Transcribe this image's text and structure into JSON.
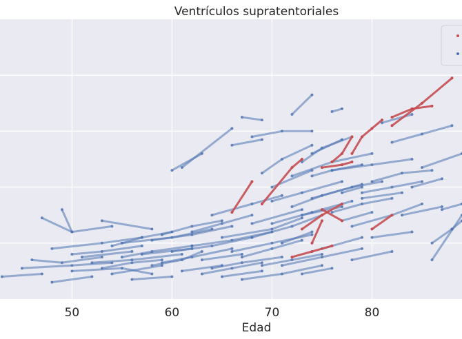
{
  "chart_data": {
    "type": "line",
    "title": "Ventrículos supratentoriales",
    "xlabel": "Edad",
    "ylabel": "",
    "xlim": [
      42.8,
      89
    ],
    "ylim": [
      0,
      100
    ],
    "xticks": [
      50,
      60,
      70,
      80
    ],
    "grid": true,
    "legend": "top-right",
    "colors": {
      "background": "#eaeaf2",
      "grid": "#ffffff",
      "blue": "#4c72b0",
      "red": "#c44e52"
    },
    "series": [
      {
        "group": "red",
        "subjects": [
          {
            "x": [
              75,
              77,
              78
            ],
            "y": [
              47,
              48,
              49
            ]
          },
          {
            "x": [
              74,
              75
            ],
            "y": [
              20,
              28
            ]
          },
          {
            "x": [
              66,
              68
            ],
            "y": [
              31,
              42
            ]
          },
          {
            "x": [
              69,
              72,
              73
            ],
            "y": [
              34,
              47,
              50
            ]
          },
          {
            "x": [
              76,
              77,
              78
            ],
            "y": [
              49,
              52,
              58
            ]
          },
          {
            "x": [
              78,
              79,
              80,
              81
            ],
            "y": [
              52,
              58,
              61,
              64
            ]
          },
          {
            "x": [
              82,
              84,
              86
            ],
            "y": [
              65,
              68,
              69
            ]
          },
          {
            "x": [
              82,
              85,
              88
            ],
            "y": [
              62,
              70,
              79
            ]
          },
          {
            "x": [
              73,
              75,
              77
            ],
            "y": [
              25,
              30,
              34
            ]
          },
          {
            "x": [
              72,
              74,
              76
            ],
            "y": [
              15,
              17,
              19
            ]
          },
          {
            "x": [
              80,
              82
            ],
            "y": [
              25,
              30
            ]
          },
          {
            "x": [
              75,
              77
            ],
            "y": [
              32,
              28
            ]
          }
        ]
      },
      {
        "group": "blue",
        "subjects": [
          {
            "x": [
              43,
              47
            ],
            "y": [
              8,
              9
            ]
          },
          {
            "x": [
              45,
              50,
              54
            ],
            "y": [
              11,
              12,
              13
            ]
          },
          {
            "x": [
              46,
              49,
              53
            ],
            "y": [
              14,
              13,
              15
            ]
          },
          {
            "x": [
              47,
              50
            ],
            "y": [
              29,
              24
            ]
          },
          {
            "x": [
              48,
              53,
              57
            ],
            "y": [
              18,
              20,
              22
            ]
          },
          {
            "x": [
              48,
              52
            ],
            "y": [
              6,
              8
            ]
          },
          {
            "x": [
              49,
              50,
              54
            ],
            "y": [
              32,
              24,
              26
            ]
          },
          {
            "x": [
              50,
              55,
              58
            ],
            "y": [
              10,
              11,
              9
            ]
          },
          {
            "x": [
              51,
              56
            ],
            "y": [
              15,
              17
            ]
          },
          {
            "x": [
              52,
              56,
              61
            ],
            "y": [
              13,
              14,
              16
            ]
          },
          {
            "x": [
              53,
              58
            ],
            "y": [
              28,
              25
            ]
          },
          {
            "x": [
              54,
              59
            ],
            "y": [
              9,
              12
            ]
          },
          {
            "x": [
              55,
              60,
              64
            ],
            "y": [
              20,
              22,
              25
            ]
          },
          {
            "x": [
              56,
              60
            ],
            "y": [
              7,
              8
            ]
          },
          {
            "x": [
              57,
              62
            ],
            "y": [
              16,
              18
            ]
          },
          {
            "x": [
              58,
              61,
              63
            ],
            "y": [
              12,
              14,
              17
            ]
          },
          {
            "x": [
              59,
              62,
              65
            ],
            "y": [
              23,
              26,
              28
            ]
          },
          {
            "x": [
              60,
              63
            ],
            "y": [
              46,
              52
            ]
          },
          {
            "x": [
              61,
              66
            ],
            "y": [
              47,
              61
            ]
          },
          {
            "x": [
              61,
              65
            ],
            "y": [
              10,
              12
            ]
          },
          {
            "x": [
              62,
              66,
              70
            ],
            "y": [
              19,
              21,
              24
            ]
          },
          {
            "x": [
              63,
              67
            ],
            "y": [
              14,
              16
            ]
          },
          {
            "x": [
              64,
              68,
              71
            ],
            "y": [
              30,
              34,
              37
            ]
          },
          {
            "x": [
              65,
              69
            ],
            "y": [
              8,
              10
            ]
          },
          {
            "x": [
              65,
              70,
              73
            ],
            "y": [
              22,
              25,
              29
            ]
          },
          {
            "x": [
              66,
              69
            ],
            "y": [
              55,
              57
            ]
          },
          {
            "x": [
              67,
              70,
              73
            ],
            "y": [
              15,
              18,
              21
            ]
          },
          {
            "x": [
              67,
              69
            ],
            "y": [
              65,
              64
            ]
          },
          {
            "x": [
              68,
              71,
              74
            ],
            "y": [
              58,
              60,
              60
            ]
          },
          {
            "x": [
              68,
              73
            ],
            "y": [
              27,
              32
            ]
          },
          {
            "x": [
              69,
              72,
              75
            ],
            "y": [
              12,
              14,
              16
            ]
          },
          {
            "x": [
              70,
              74
            ],
            "y": [
              40,
              46
            ]
          },
          {
            "x": [
              70,
              73,
              77
            ],
            "y": [
              35,
              38,
              42
            ]
          },
          {
            "x": [
              71,
              74
            ],
            "y": [
              20,
              24
            ]
          },
          {
            "x": [
              72,
              74
            ],
            "y": [
              66,
              73
            ]
          },
          {
            "x": [
              72,
              76,
              80
            ],
            "y": [
              44,
              49,
              52
            ]
          },
          {
            "x": [
              73,
              77
            ],
            "y": [
              30,
              33
            ]
          },
          {
            "x": [
              73,
              76
            ],
            "y": [
              9,
              11
            ]
          },
          {
            "x": [
              74,
              78,
              81
            ],
            "y": [
              36,
              40,
              42
            ]
          },
          {
            "x": [
              74,
              77
            ],
            "y": [
              52,
              57
            ]
          },
          {
            "x": [
              75,
              79
            ],
            "y": [
              18,
              22
            ]
          },
          {
            "x": [
              76,
              77
            ],
            "y": [
              67,
              68
            ]
          },
          {
            "x": [
              76,
              80,
              84
            ],
            "y": [
              46,
              48,
              50
            ]
          },
          {
            "x": [
              77,
              80
            ],
            "y": [
              28,
              31
            ]
          },
          {
            "x": [
              77,
              79
            ],
            "y": [
              38,
              40
            ]
          },
          {
            "x": [
              78,
              82
            ],
            "y": [
              14,
              17
            ]
          },
          {
            "x": [
              78,
              82,
              85
            ],
            "y": [
              26,
              30,
              34
            ]
          },
          {
            "x": [
              79,
              83
            ],
            "y": [
              36,
              38
            ]
          },
          {
            "x": [
              80,
              83,
              86
            ],
            "y": [
              42,
              45,
              46
            ]
          },
          {
            "x": [
              80,
              84
            ],
            "y": [
              22,
              24
            ]
          },
          {
            "x": [
              81,
              84
            ],
            "y": [
              63,
              66
            ]
          },
          {
            "x": [
              82,
              85,
              88
            ],
            "y": [
              56,
              59,
              62
            ]
          },
          {
            "x": [
              83,
              87
            ],
            "y": [
              30,
              33
            ]
          },
          {
            "x": [
              84,
              87
            ],
            "y": [
              40,
              43
            ]
          },
          {
            "x": [
              85,
              89
            ],
            "y": [
              47,
              52
            ]
          },
          {
            "x": [
              86,
              88
            ],
            "y": [
              20,
              25
            ]
          },
          {
            "x": [
              86,
              89
            ],
            "y": [
              14,
              30
            ]
          },
          {
            "x": [
              87,
              89
            ],
            "y": [
              32,
              34
            ]
          },
          {
            "x": [
              88,
              89
            ],
            "y": [
              25,
              28
            ]
          },
          {
            "x": [
              54,
              57,
              60
            ],
            "y": [
              19,
              22,
              24
            ]
          },
          {
            "x": [
              58,
              62,
              66
            ],
            "y": [
              21,
              23,
              26
            ]
          },
          {
            "x": [
              60,
              64,
              68
            ],
            "y": [
              17,
              19,
              22
            ]
          },
          {
            "x": [
              62,
              65,
              68
            ],
            "y": [
              24,
              27,
              30
            ]
          },
          {
            "x": [
              64,
              67,
              71
            ],
            "y": [
              11,
              13,
              15
            ]
          },
          {
            "x": [
              66,
              70,
              74
            ],
            "y": [
              17,
              20,
              23
            ]
          },
          {
            "x": [
              68,
              72,
              75
            ],
            "y": [
              22,
              26,
              30
            ]
          },
          {
            "x": [
              70,
              74,
              78
            ],
            "y": [
              27,
              31,
              35
            ]
          },
          {
            "x": [
              72,
              75,
              79
            ],
            "y": [
              33,
              37,
              41
            ]
          },
          {
            "x": [
              63,
              66,
              69
            ],
            "y": [
              9,
              11,
              13
            ]
          },
          {
            "x": [
              67,
              71,
              75
            ],
            "y": [
              7,
              9,
              12
            ]
          },
          {
            "x": [
              71,
              75,
              79
            ],
            "y": [
              12,
              15,
              18
            ]
          },
          {
            "x": [
              59,
              62,
              66
            ],
            "y": [
              13,
              15,
              18
            ]
          },
          {
            "x": [
              55,
              58,
              62
            ],
            "y": [
              15,
              17,
              19
            ]
          },
          {
            "x": [
              53,
              56,
              59
            ],
            "y": [
              11,
              13,
              14
            ]
          },
          {
            "x": [
              50,
              53,
              57
            ],
            "y": [
              16,
              17,
              19
            ]
          },
          {
            "x": [
              74,
              76,
              79
            ],
            "y": [
              44,
              46,
              48
            ]
          },
          {
            "x": [
              76,
              79,
              82
            ],
            "y": [
              31,
              34,
              36
            ]
          },
          {
            "x": [
              79,
              82,
              85
            ],
            "y": [
              38,
              40,
              42
            ]
          },
          {
            "x": [
              73,
              75,
              78
            ],
            "y": [
              49,
              54,
              58
            ]
          },
          {
            "x": [
              69,
              71,
              74
            ],
            "y": [
              45,
              50,
              55
            ]
          }
        ]
      }
    ]
  }
}
